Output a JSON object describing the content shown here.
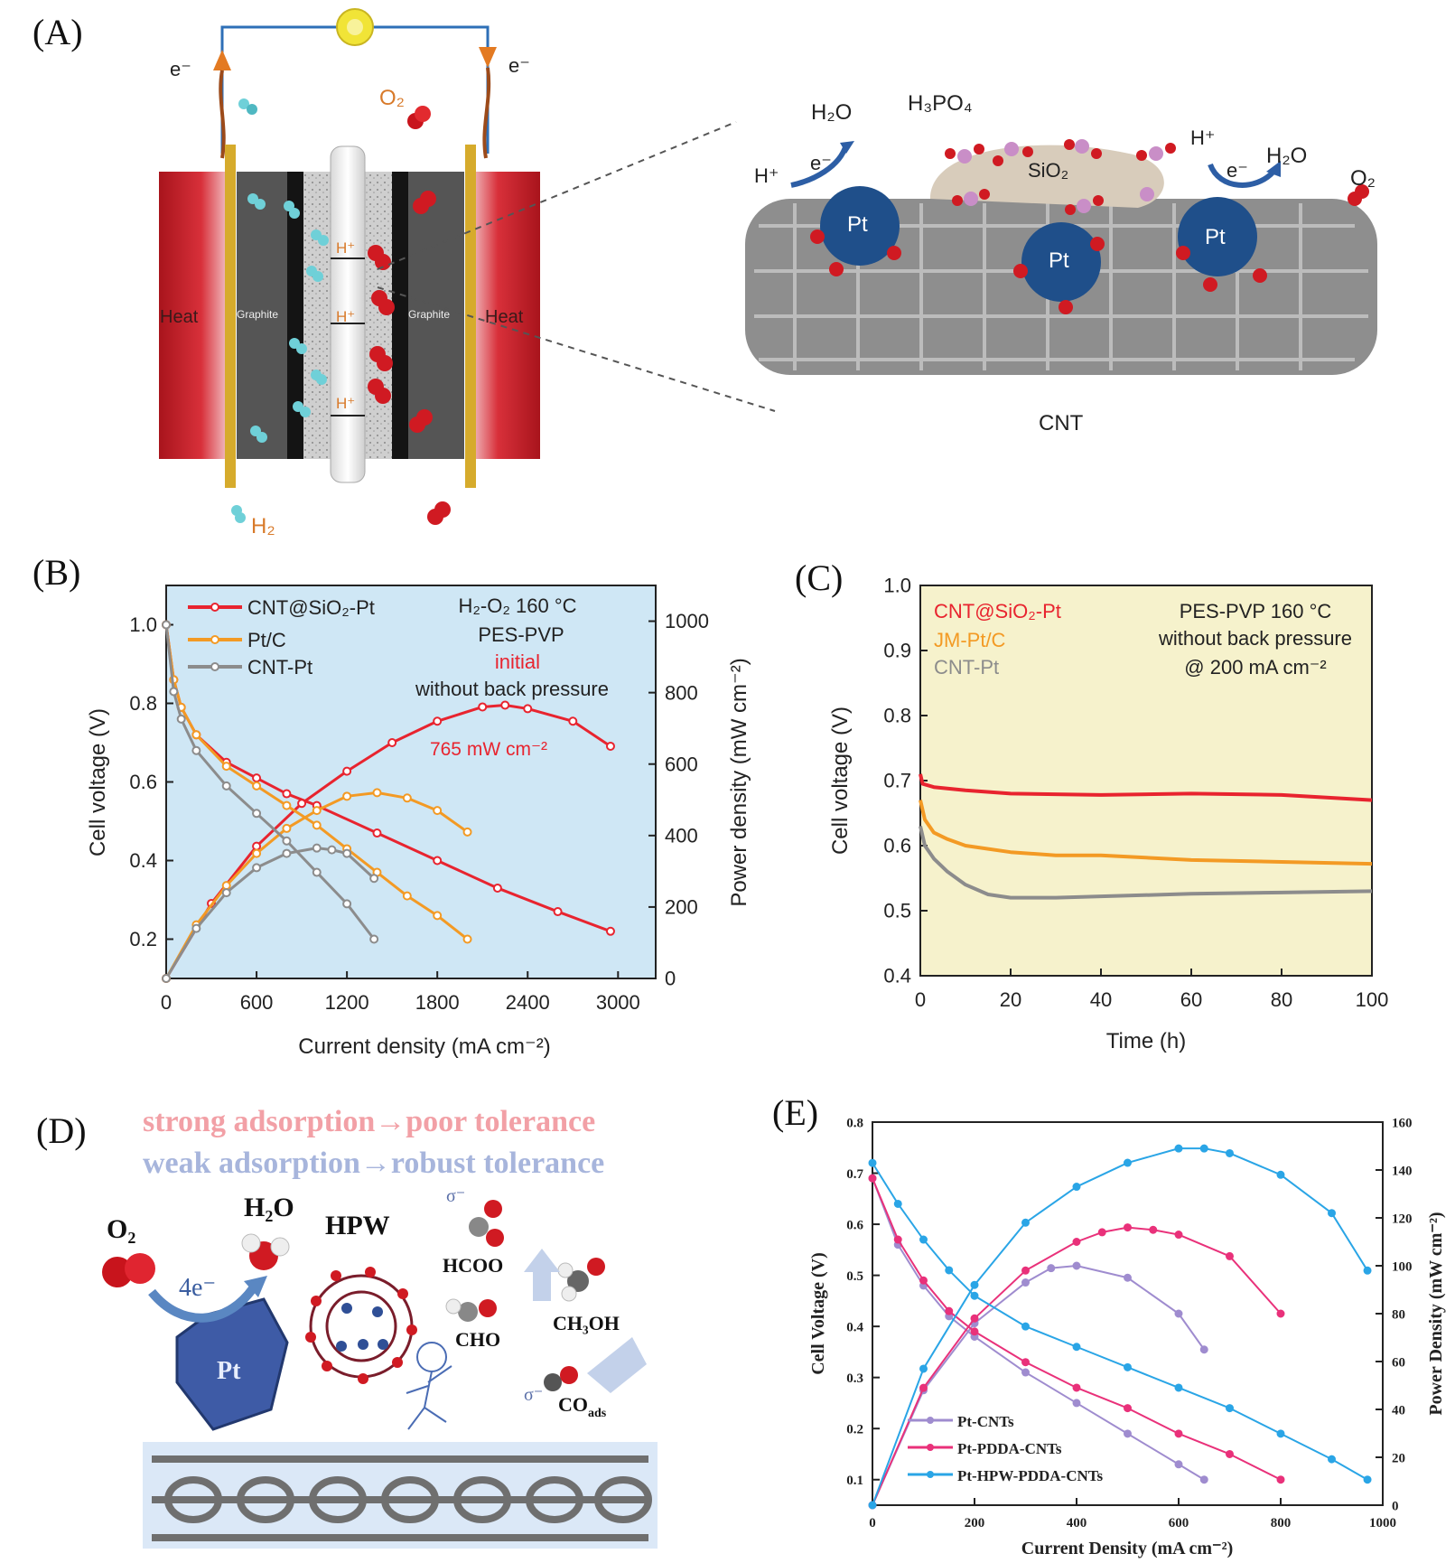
{
  "panels": {
    "A": "(A)",
    "B": "(B)",
    "C": "(C)",
    "D": "(D)",
    "E": "(E)"
  },
  "panelA": {
    "e_left": "e⁻",
    "e_right": "e⁻",
    "o2": "O₂",
    "h2": "H₂",
    "heat_left": "Heat",
    "heat_right": "Heat",
    "graphite_left": "Graphite",
    "graphite_right": "Graphite",
    "hplus": "H⁺",
    "zoom": {
      "h2o_left": "H₂O",
      "h3po4": "H₃PO₄",
      "hplus_left": "H⁺",
      "e_left": "e⁻",
      "sio2": "SiO₂",
      "hplus_right": "H⁺",
      "e_right": "e⁻",
      "h2o_right": "H₂O",
      "o2": "O₂",
      "pt": "Pt",
      "cnt": "CNT"
    }
  },
  "panelD": {
    "line1": "strong adsorption→poor tolerance",
    "line2": "weak adsorption→robust tolerance",
    "o2": "O₂",
    "h2o": "H₂O",
    "hpw": "HPW",
    "four_e": "4e⁻",
    "pt": "Pt",
    "hcoo": "HCOO",
    "cho": "CHO",
    "ch3oh": "CH₃OH",
    "coads": "CO",
    "coads_sub": "ads",
    "sigma": "σ⁻"
  },
  "colors": {
    "red": "#e8242f",
    "orange": "#f39a24",
    "gray": "#8c8c8c",
    "purple": "#9f8ccf",
    "pink": "#e9317a",
    "blue": "#2aa5e6",
    "panelB_bg": "#cfe7f5",
    "panelC_bg": "#f6f2cc"
  },
  "chart_data": [
    {
      "id": "B",
      "type": "line",
      "xlabel": "Current density (mA cm⁻²)",
      "ylabel": "Cell voltage (V)",
      "y2label": "Power density (mW cm⁻²)",
      "xlim": [
        0,
        3250
      ],
      "ylim": [
        0.1,
        1.1
      ],
      "y2lim": [
        0,
        1100
      ],
      "xticks": [
        0,
        600,
        1200,
        1800,
        2400,
        3000
      ],
      "yticks": [
        0.2,
        0.4,
        0.6,
        0.8,
        1.0
      ],
      "y2ticks": [
        0,
        200,
        400,
        600,
        800,
        1000
      ],
      "notes": [
        "H₂-O₂ 160 °C",
        "PES-PVP",
        "initial",
        "without back pressure"
      ],
      "annotation": "765 mW cm⁻²",
      "legend_position": "top-left",
      "series": [
        {
          "name": "CNT@SiO₂-Pt",
          "color": "#e8242f",
          "voltage": {
            "x": [
              0,
              50,
              100,
              200,
              400,
              600,
              800,
              1000,
              1400,
              1800,
              2200,
              2600,
              2950
            ],
            "y": [
              1.0,
              0.86,
              0.79,
              0.72,
              0.65,
              0.61,
              0.57,
              0.54,
              0.47,
              0.4,
              0.33,
              0.27,
              0.22
            ]
          },
          "power": {
            "x": [
              0,
              300,
              600,
              900,
              1200,
              1500,
              1800,
              2100,
              2250,
              2400,
              2700,
              2950
            ],
            "y": [
              0,
              210,
              370,
              490,
              580,
              660,
              720,
              760,
              765,
              755,
              720,
              650
            ]
          }
        },
        {
          "name": "Pt/C",
          "color": "#f39a24",
          "voltage": {
            "x": [
              0,
              50,
              100,
              200,
              400,
              600,
              800,
              1000,
              1200,
              1400,
              1600,
              1800,
              2000
            ],
            "y": [
              1.0,
              0.86,
              0.79,
              0.72,
              0.64,
              0.59,
              0.54,
              0.49,
              0.43,
              0.37,
              0.31,
              0.26,
              0.2
            ]
          },
          "power": {
            "x": [
              0,
              200,
              400,
              600,
              800,
              1000,
              1200,
              1400,
              1600,
              1800,
              2000
            ],
            "y": [
              0,
              150,
              260,
              350,
              420,
              470,
              510,
              520,
              505,
              470,
              410
            ]
          }
        },
        {
          "name": "CNT-Pt",
          "color": "#8c8c8c",
          "voltage": {
            "x": [
              0,
              50,
              100,
              200,
              400,
              600,
              800,
              1000,
              1200,
              1380
            ],
            "y": [
              1.0,
              0.83,
              0.76,
              0.68,
              0.59,
              0.52,
              0.45,
              0.37,
              0.29,
              0.2
            ]
          },
          "power": {
            "x": [
              0,
              200,
              400,
              600,
              800,
              1000,
              1100,
              1200,
              1380
            ],
            "y": [
              0,
              140,
              240,
              310,
              350,
              365,
              360,
              350,
              280
            ]
          }
        }
      ]
    },
    {
      "id": "C",
      "type": "line",
      "xlabel": "Time (h)",
      "ylabel": "Cell voltage (V)",
      "xlim": [
        0,
        100
      ],
      "ylim": [
        0.4,
        1.0
      ],
      "xticks": [
        0,
        20,
        40,
        60,
        80,
        100
      ],
      "yticks": [
        0.4,
        0.5,
        0.6,
        0.7,
        0.8,
        0.9,
        1.0
      ],
      "notes": [
        "PES-PVP 160 °C",
        "without back pressure",
        "@ 200 mA cm⁻²"
      ],
      "legend_position": "top-left",
      "series": [
        {
          "name": "CNT@SiO₂-Pt",
          "color": "#e8242f",
          "x": [
            0,
            0.5,
            3,
            10,
            20,
            40,
            60,
            80,
            100
          ],
          "y": [
            0.71,
            0.695,
            0.69,
            0.685,
            0.68,
            0.678,
            0.68,
            0.678,
            0.67
          ]
        },
        {
          "name": "JM-Pt/C",
          "color": "#f39a24",
          "x": [
            0,
            1,
            3,
            6,
            10,
            20,
            30,
            40,
            60,
            80,
            100
          ],
          "y": [
            0.67,
            0.64,
            0.62,
            0.61,
            0.6,
            0.59,
            0.585,
            0.585,
            0.578,
            0.575,
            0.572
          ]
        },
        {
          "name": "CNT-Pt",
          "color": "#8c8c8c",
          "x": [
            0,
            1,
            3,
            6,
            10,
            15,
            20,
            30,
            40,
            60,
            80,
            100
          ],
          "y": [
            0.63,
            0.6,
            0.58,
            0.56,
            0.54,
            0.525,
            0.52,
            0.52,
            0.522,
            0.526,
            0.528,
            0.53
          ]
        }
      ]
    },
    {
      "id": "E",
      "type": "line",
      "xlabel": "Current Density (mA cm⁻²)",
      "ylabel": "Cell Voltage (V)",
      "y2label": "Power Density (mW cm⁻²)",
      "xlim": [
        0,
        1000
      ],
      "ylim": [
        0.05,
        0.8
      ],
      "y2lim": [
        0,
        160
      ],
      "xticks": [
        0,
        200,
        400,
        600,
        800,
        1000
      ],
      "yticks": [
        0.1,
        0.2,
        0.3,
        0.4,
        0.5,
        0.6,
        0.7,
        0.8
      ],
      "y2ticks": [
        0,
        20,
        40,
        60,
        80,
        100,
        120,
        140,
        160
      ],
      "legend_position": "bottom-left",
      "series": [
        {
          "name": "Pt-CNTs",
          "color": "#9f8ccf",
          "voltage": {
            "x": [
              0,
              50,
              100,
              150,
              200,
              300,
              400,
              500,
              600,
              650
            ],
            "y": [
              0.69,
              0.56,
              0.48,
              0.42,
              0.38,
              0.31,
              0.25,
              0.19,
              0.13,
              0.1
            ]
          },
          "power": {
            "x": [
              0,
              100,
              200,
              300,
              350,
              400,
              500,
              600,
              650
            ],
            "y": [
              0,
              48,
              76,
              93,
              99,
              100,
              95,
              80,
              65
            ]
          }
        },
        {
          "name": "Pt-PDDA-CNTs",
          "color": "#e9317a",
          "voltage": {
            "x": [
              0,
              50,
              100,
              150,
              200,
              300,
              400,
              500,
              600,
              700,
              800
            ],
            "y": [
              0.69,
              0.57,
              0.49,
              0.43,
              0.39,
              0.33,
              0.28,
              0.24,
              0.19,
              0.15,
              0.1
            ]
          },
          "power": {
            "x": [
              0,
              100,
              200,
              300,
              400,
              450,
              500,
              550,
              600,
              700,
              800
            ],
            "y": [
              0,
              49,
              78,
              98,
              110,
              114,
              116,
              115,
              113,
              104,
              80
            ]
          }
        },
        {
          "name": "Pt-HPW-PDDA-CNTs",
          "color": "#2aa5e6",
          "voltage": {
            "x": [
              0,
              50,
              100,
              150,
              200,
              300,
              400,
              500,
              600,
              700,
              800,
              900,
              970
            ],
            "y": [
              0.72,
              0.64,
              0.57,
              0.51,
              0.46,
              0.4,
              0.36,
              0.32,
              0.28,
              0.24,
              0.19,
              0.14,
              0.1
            ]
          },
          "power": {
            "x": [
              0,
              100,
              200,
              300,
              400,
              500,
              600,
              650,
              700,
              800,
              900,
              970
            ],
            "y": [
              0,
              57,
              92,
              118,
              133,
              143,
              149,
              149,
              147,
              138,
              122,
              98
            ]
          }
        }
      ]
    }
  ]
}
